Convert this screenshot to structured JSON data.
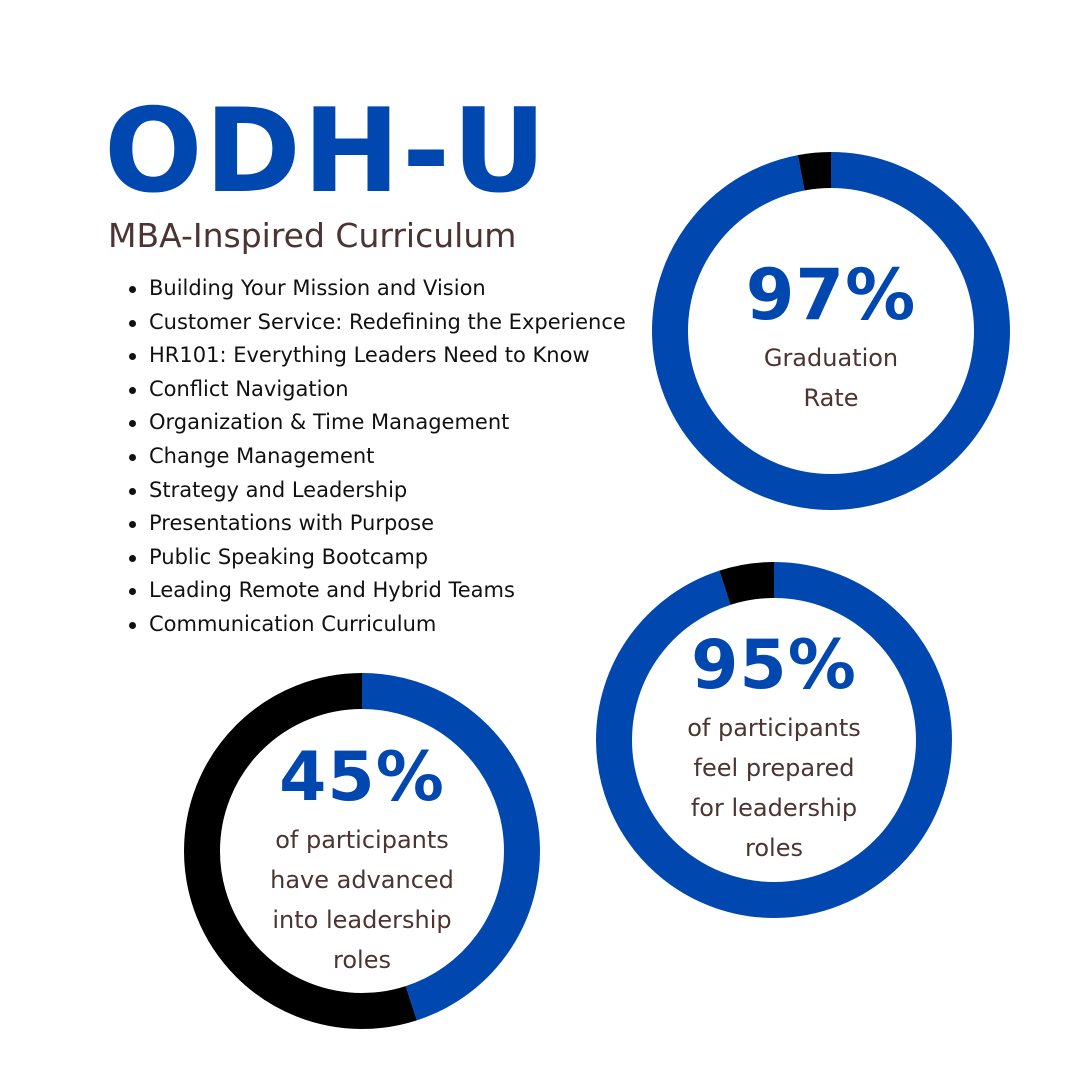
{
  "header": {
    "title": "ODH-U",
    "subtitle": "MBA-Inspired Curriculum"
  },
  "curriculum": {
    "items": [
      "Building Your Mission and Vision",
      "Customer Service: Redefining the Experience",
      "HR101: Everything Leaders Need to Know",
      "Conflict Navigation",
      "Organization & Time Management",
      "Change Management",
      "Strategy and Leadership",
      "Presentations with Purpose",
      "Public Speaking Bootcamp",
      "Leading Remote and Hybrid Teams",
      "Communication Curriculum"
    ]
  },
  "colors": {
    "brand_blue": "#0047b0",
    "remainder_black": "#000000",
    "caption_brown": "#4b3431"
  },
  "chart_data": [
    {
      "type": "pie",
      "variant": "donut",
      "value_label": "97%",
      "caption": "Graduation Rate",
      "slices": [
        {
          "label": "",
          "value": 97,
          "color": "#0047b0"
        },
        {
          "label": "",
          "value": 3,
          "color": "#000000"
        }
      ]
    },
    {
      "type": "pie",
      "variant": "donut",
      "value_label": "95%",
      "caption": "of participants feel prepared for leadership roles",
      "slices": [
        {
          "label": "",
          "value": 95,
          "color": "#0047b0"
        },
        {
          "label": "",
          "value": 5,
          "color": "#000000"
        }
      ]
    },
    {
      "type": "pie",
      "variant": "donut",
      "value_label": "45%",
      "caption": "of participants have advanced into leadership roles",
      "slices": [
        {
          "label": "",
          "value": 45,
          "color": "#0047b0"
        },
        {
          "label": "",
          "value": 55,
          "color": "#000000"
        }
      ]
    }
  ]
}
